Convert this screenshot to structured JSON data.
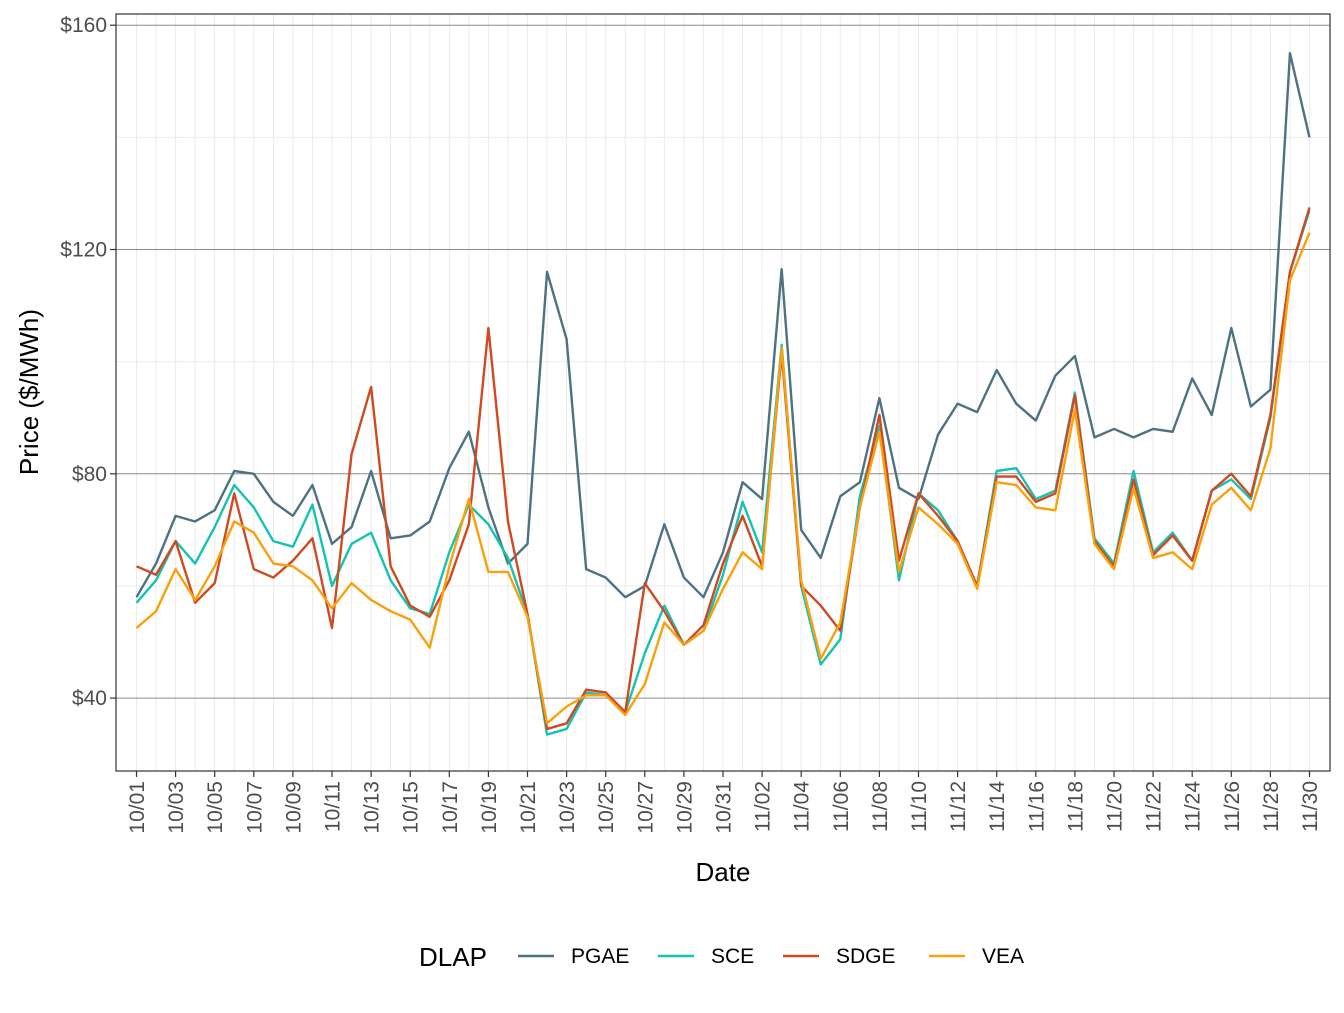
{
  "chart_data": {
    "type": "line",
    "title": "",
    "xlabel": "Date",
    "ylabel": "Price ($/MWh)",
    "ylim": [
      27,
      162
    ],
    "y_ticks": [
      40,
      80,
      120,
      160
    ],
    "y_tick_labels": [
      "$40",
      "$80",
      "$120",
      "$160"
    ],
    "x_tick_labels": [
      "10/01",
      "10/03",
      "10/05",
      "10/07",
      "10/09",
      "10/11",
      "10/13",
      "10/15",
      "10/17",
      "10/19",
      "10/21",
      "10/23",
      "10/25",
      "10/27",
      "10/29",
      "10/31",
      "11/02",
      "11/04",
      "11/06",
      "11/08",
      "11/10",
      "11/12",
      "11/14",
      "11/16",
      "11/18",
      "11/20",
      "11/22",
      "11/24",
      "11/26",
      "11/28",
      "11/30"
    ],
    "x": [
      "10/01",
      "10/02",
      "10/03",
      "10/04",
      "10/05",
      "10/06",
      "10/07",
      "10/08",
      "10/09",
      "10/10",
      "10/11",
      "10/12",
      "10/13",
      "10/14",
      "10/15",
      "10/16",
      "10/17",
      "10/18",
      "10/19",
      "10/20",
      "10/21",
      "10/22",
      "10/23",
      "10/24",
      "10/25",
      "10/26",
      "10/27",
      "10/28",
      "10/29",
      "10/30",
      "10/31",
      "11/01",
      "11/02",
      "11/03",
      "11/04",
      "11/05",
      "11/06",
      "11/07",
      "11/08",
      "11/09",
      "11/10",
      "11/11",
      "11/12",
      "11/13",
      "11/14",
      "11/15",
      "11/16",
      "11/17",
      "11/18",
      "11/19",
      "11/20",
      "11/21",
      "11/22",
      "11/23",
      "11/24",
      "11/25",
      "11/26",
      "11/27",
      "11/28",
      "11/29",
      "11/30"
    ],
    "grid": true,
    "legend": {
      "title": "DLAP",
      "position": "bottom"
    },
    "series": [
      {
        "name": "PGAE",
        "color": "#4e7282",
        "values": [
          58,
          64,
          72.5,
          71.5,
          73.5,
          80.5,
          80,
          75,
          72.5,
          78,
          67.5,
          70.5,
          80.5,
          68.5,
          69,
          71.5,
          81,
          87.5,
          74,
          64,
          67.5,
          116,
          104,
          63,
          61.5,
          58,
          60,
          71,
          61.5,
          58,
          66,
          78.5,
          75.5,
          116.5,
          70,
          65,
          76,
          78.5,
          93.5,
          77.5,
          75.5,
          87,
          92.5,
          91,
          98.5,
          92.5,
          89.5,
          97.5,
          101,
          86.5,
          88,
          86.5,
          88,
          87.5,
          97,
          90.5,
          106,
          92,
          95,
          155,
          140
        ]
      },
      {
        "name": "SCE",
        "color": "#17c2b0",
        "values": [
          57,
          61,
          68,
          64,
          70.5,
          78,
          74,
          68,
          67,
          74.5,
          60,
          67.5,
          69.5,
          61,
          56,
          55,
          66,
          74.5,
          71,
          65,
          55,
          33.5,
          34.5,
          41,
          40.5,
          37.5,
          48,
          56.5,
          49.5,
          52,
          62,
          75,
          66,
          103,
          60,
          46,
          50.5,
          76,
          88.5,
          61,
          76.5,
          73.5,
          68,
          60,
          80.5,
          81,
          75.5,
          77,
          94.5,
          68.5,
          64,
          80.5,
          66,
          69.5,
          64.5,
          77,
          79,
          75.5,
          90,
          116,
          127
        ]
      },
      {
        "name": "SDGE",
        "color": "#cf4a22",
        "values": [
          63.5,
          62,
          68,
          57,
          60.5,
          76.5,
          63,
          61.5,
          64.5,
          68.5,
          52.5,
          83.5,
          95.5,
          63.5,
          56.5,
          54.5,
          61,
          71,
          106,
          71.5,
          55,
          34.5,
          35.5,
          41.5,
          41,
          37.5,
          60.5,
          55.5,
          49.5,
          53,
          64,
          72.5,
          63.5,
          101.5,
          60,
          56.5,
          52,
          74,
          90.5,
          64.5,
          76.5,
          72.5,
          68,
          60,
          79.5,
          79.5,
          75,
          76.5,
          94,
          68,
          63.5,
          79,
          65.5,
          69,
          64.5,
          77,
          80,
          76,
          90.5,
          116,
          127.5
        ]
      },
      {
        "name": "VEA",
        "color": "#f9a10c",
        "values": [
          52.5,
          55.5,
          63,
          57.5,
          63.5,
          71.5,
          69.5,
          64,
          63.5,
          61,
          56,
          60.5,
          57.5,
          55.5,
          54,
          49,
          63.5,
          75.5,
          62.5,
          62.5,
          54.5,
          35.5,
          38.5,
          40.5,
          40.5,
          37,
          42.5,
          53.5,
          49.5,
          52,
          59.5,
          66,
          63,
          102.5,
          61,
          47,
          53.5,
          74,
          87.5,
          62.5,
          74,
          71,
          67.5,
          59.5,
          78.5,
          78,
          74,
          73.5,
          91.5,
          67.5,
          63,
          77.5,
          65,
          66,
          63,
          74.5,
          77.5,
          73.5,
          84.5,
          114.5,
          123
        ]
      }
    ]
  }
}
